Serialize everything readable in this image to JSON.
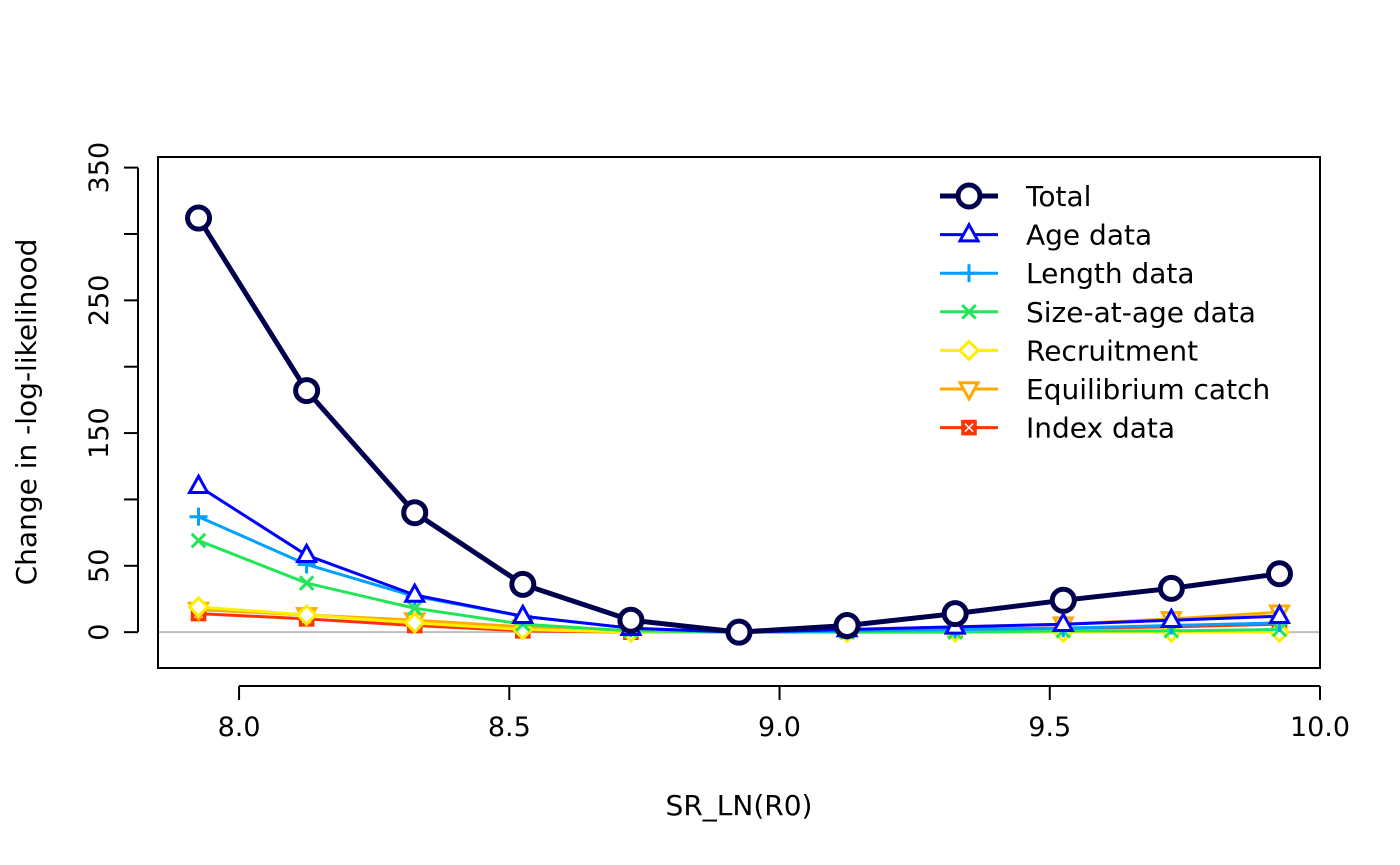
{
  "chart_data": {
    "type": "line",
    "title": "",
    "xlabel": "SR_LN(R0)",
    "ylabel": "Change in -log-likelihood",
    "xlim": [
      7.85,
      10.0
    ],
    "ylim": [
      -27,
      358
    ],
    "x_ticks": [
      8.0,
      8.5,
      9.0,
      9.5,
      10.0
    ],
    "x_tick_labels": [
      "8.0",
      "8.5",
      "9.0",
      "9.5",
      "10.0"
    ],
    "y_ticks": [
      0,
      50,
      100,
      150,
      200,
      250,
      300,
      350
    ],
    "y_tick_labels": [
      "0",
      "50",
      "",
      "150",
      "",
      "250",
      "",
      "350"
    ],
    "reference_line": {
      "y": 0,
      "color": "#bebebe"
    },
    "legend_position": "top-right",
    "x": [
      7.925,
      8.125,
      8.325,
      8.525,
      8.725,
      8.925,
      9.125,
      9.325,
      9.525,
      9.725,
      9.925
    ],
    "series": [
      {
        "name": "Total",
        "color": "#00004d",
        "marker": "circle",
        "width": 5,
        "values": [
          312,
          182,
          90,
          36,
          9,
          0,
          5,
          14,
          24,
          33,
          44
        ]
      },
      {
        "name": "Age data",
        "color": "#0000ff",
        "marker": "triangle-up",
        "width": 3,
        "values": [
          110,
          58,
          28,
          12,
          3,
          0,
          2,
          4,
          6,
          9,
          12
        ]
      },
      {
        "name": "Length data",
        "color": "#00a0ff",
        "marker": "plus",
        "width": 3,
        "values": [
          87,
          51,
          27,
          12,
          3,
          0,
          1,
          2,
          3,
          5,
          7
        ]
      },
      {
        "name": "Size-at-age data",
        "color": "#22e55a",
        "marker": "cross",
        "width": 3,
        "values": [
          69,
          37,
          18,
          6,
          1,
          0,
          0,
          0,
          1,
          1,
          2
        ]
      },
      {
        "name": "Recruitment",
        "color": "#ffee00",
        "marker": "diamond",
        "width": 3,
        "values": [
          19,
          13,
          7,
          2,
          0,
          0,
          0,
          0,
          0,
          0,
          0
        ]
      },
      {
        "name": "Equilibrium catch",
        "color": "#ffaa00",
        "marker": "triangle-down",
        "width": 3,
        "values": [
          17,
          13,
          9,
          4,
          1,
          0,
          2,
          4,
          6,
          10,
          15
        ]
      },
      {
        "name": "Index data",
        "color": "#ff3300",
        "marker": "square-x",
        "width": 3,
        "values": [
          14,
          10,
          5,
          1,
          0,
          0,
          1,
          2,
          3,
          4,
          6
        ]
      }
    ]
  }
}
